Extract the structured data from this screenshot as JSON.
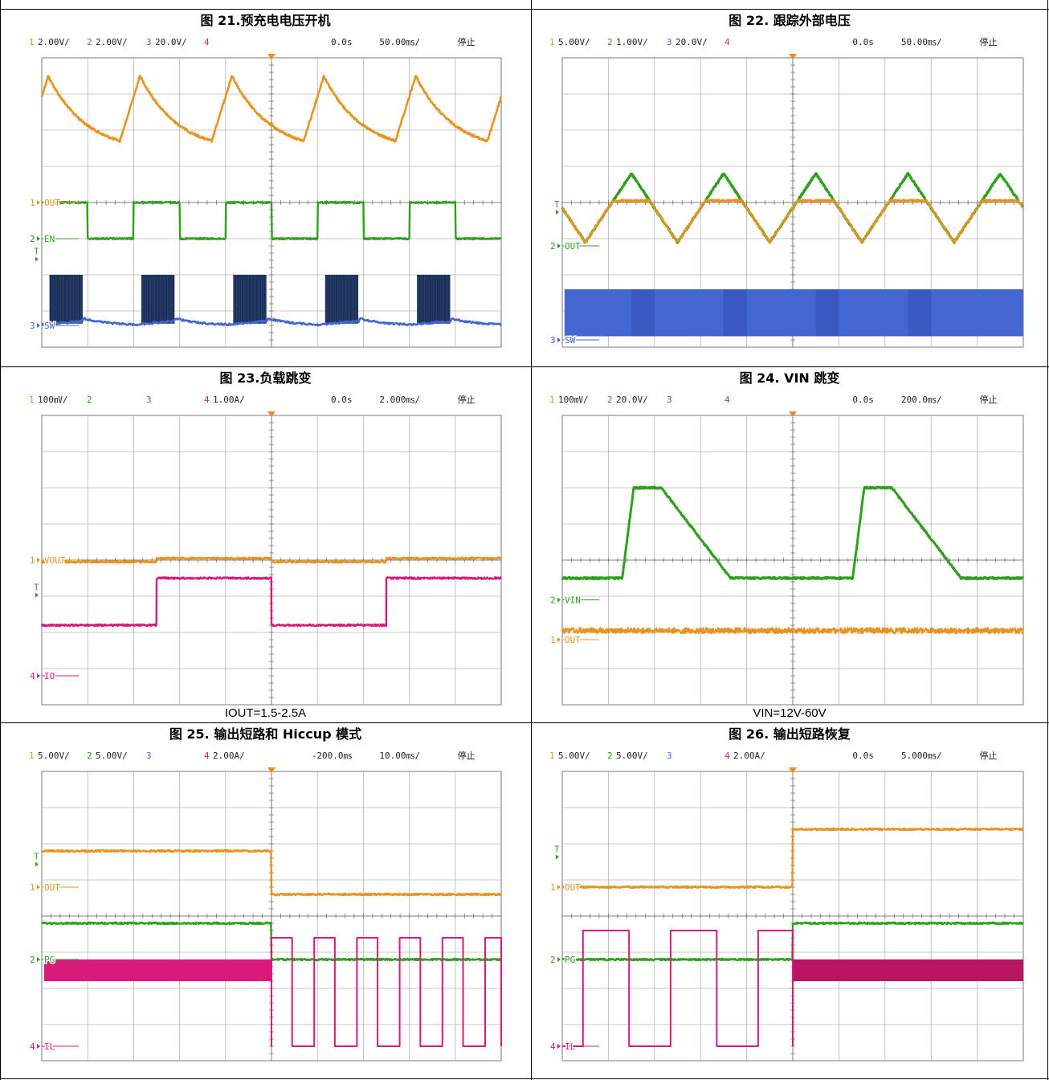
{
  "figures": [
    {
      "title": "图 21.预充电电压开机",
      "caption": "",
      "status": {
        "ch": [
          {
            "n": "1",
            "scale": "2.00V/"
          },
          {
            "n": "2",
            "scale": "2.00V/"
          },
          {
            "n": "3",
            "scale": "20.0V/"
          },
          {
            "n": "4",
            "scale": ""
          }
        ],
        "delay": "0.0s",
        "timebase": "50.00㎳/",
        "state": "停止"
      },
      "labels": [
        {
          "ch": "1",
          "text": "OUT",
          "level": 4
        },
        {
          "ch": "2",
          "text": "EN",
          "level": 5
        },
        {
          "ch": "3",
          "text": "SW",
          "level": 7.4
        }
      ],
      "trigger_level": 5.5
    },
    {
      "title": "图 22. 跟踪外部电压",
      "caption": "",
      "status": {
        "ch": [
          {
            "n": "1",
            "scale": "5.00V/"
          },
          {
            "n": "2",
            "scale": "1.00V/"
          },
          {
            "n": "3",
            "scale": "20.0V/"
          },
          {
            "n": "4",
            "scale": ""
          }
        ],
        "delay": "0.0s",
        "timebase": "50.00㎳/",
        "state": "停止"
      },
      "labels": [
        {
          "ch": "2",
          "text": "OUT",
          "level": 5.2
        },
        {
          "ch": "3",
          "text": "SW",
          "level": 7.8
        }
      ],
      "trigger_level": 4.2
    },
    {
      "title": "图 23.负载跳变",
      "caption": "IOUT=1.5-2.5A",
      "status": {
        "ch": [
          {
            "n": "1",
            "scale": "100㎷/"
          },
          {
            "n": "2",
            "scale": ""
          },
          {
            "n": "3",
            "scale": ""
          },
          {
            "n": "4",
            "scale": "1.00A/"
          }
        ],
        "delay": "0.0s",
        "timebase": "2.000㎳/",
        "state": "停止"
      },
      "labels": [
        {
          "ch": "1",
          "text": "VOUT",
          "level": 4
        },
        {
          "ch": "4",
          "text": "IO",
          "level": 7.2
        }
      ],
      "trigger_level": 4.9
    },
    {
      "title": "图 24. VIN 跳变",
      "caption": "VIN=12V-60V",
      "status": {
        "ch": [
          {
            "n": "1",
            "scale": "100㎷/"
          },
          {
            "n": "2",
            "scale": "20.0V/"
          },
          {
            "n": "3",
            "scale": ""
          },
          {
            "n": "4",
            "scale": ""
          }
        ],
        "delay": "0.0s",
        "timebase": "200.0㎳/",
        "state": "停止"
      },
      "labels": [
        {
          "ch": "2",
          "text": "VIN",
          "level": 5.1
        },
        {
          "ch": "1",
          "text": "OUT",
          "level": 6.2
        }
      ],
      "trigger_level": null
    },
    {
      "title": "图 25. 输出短路和 Hiccup 模式",
      "caption": "",
      "status": {
        "ch": [
          {
            "n": "1",
            "scale": "5.00V/"
          },
          {
            "n": "2",
            "scale": "5.00V/"
          },
          {
            "n": "3",
            "scale": ""
          },
          {
            "n": "4",
            "scale": "2.00A/"
          }
        ],
        "delay": "-200.0㎳",
        "timebase": "10.00㎳/",
        "state": "停止"
      },
      "labels": [
        {
          "ch": "1",
          "text": "OUT",
          "level": 3.2
        },
        {
          "ch": "2",
          "text": "PG",
          "level": 5.2
        },
        {
          "ch": "4",
          "text": "IL",
          "level": 7.6
        }
      ],
      "trigger_level": 2.5
    },
    {
      "title": "图 26. 输出短路恢复",
      "caption": "",
      "status": {
        "ch": [
          {
            "n": "1",
            "scale": "5.00V/"
          },
          {
            "n": "2",
            "scale": "5.00V/"
          },
          {
            "n": "3",
            "scale": ""
          },
          {
            "n": "4",
            "scale": "2.00A/"
          }
        ],
        "delay": "0.0s",
        "timebase": "5.000㎳/",
        "state": "停止"
      },
      "labels": [
        {
          "ch": "1",
          "text": "OUT",
          "level": 3.2
        },
        {
          "ch": "2",
          "text": "PG",
          "level": 5.2
        },
        {
          "ch": "4",
          "text": "IL",
          "level": 7.6
        }
      ],
      "trigger_level": 2.3
    }
  ],
  "colors": {
    "ch1": "#e8931e",
    "ch2": "#2ea01e",
    "ch3": "#4466d0",
    "ch3_burst": "#1a2e5a",
    "ch4": "#d81b7a",
    "grid": "#b4b4b4",
    "frame": "#7a7a7a"
  },
  "chart_data": [
    {
      "type": "line",
      "divisions_x": 10,
      "divisions_y": 8,
      "series": [
        {
          "channel": "1",
          "kind": "sawtooth",
          "period_div": 2,
          "high_level": 0.5,
          "low_level": 2.3,
          "phase_div": 0.3
        },
        {
          "channel": "2",
          "kind": "square",
          "period_div": 2,
          "high_level": 4.0,
          "low_level": 5.0,
          "high_first_div": 1.0
        },
        {
          "channel": "3",
          "kind": "burst",
          "period_div": 2,
          "burst_div": 0.9,
          "top_level": 6.0,
          "base_level": 7.4
        }
      ]
    },
    {
      "type": "line",
      "divisions_x": 10,
      "divisions_y": 8,
      "series": [
        {
          "channel": "2",
          "kind": "triangle",
          "period_div": 2,
          "high_level": 3.2,
          "low_level": 5.1
        },
        {
          "channel": "1",
          "kind": "clipped_triangle",
          "period_div": 2,
          "clip_level": 3.95,
          "low_level": 5.1
        },
        {
          "channel": "3",
          "kind": "band",
          "top_level": 6.4,
          "bottom_level": 7.7
        }
      ]
    },
    {
      "type": "line",
      "divisions_x": 10,
      "divisions_y": 8,
      "series": [
        {
          "channel": "1",
          "kind": "step",
          "segments": [
            [
              0.0,
              4.05
            ],
            [
              2.5,
              3.95
            ],
            [
              5.0,
              4.05
            ],
            [
              7.5,
              3.95
            ],
            [
              10.0,
              3.95
            ]
          ]
        },
        {
          "channel": "4",
          "kind": "step",
          "segments": [
            [
              0.0,
              5.8
            ],
            [
              2.5,
              4.5
            ],
            [
              5.0,
              5.8
            ],
            [
              7.5,
              4.5
            ],
            [
              10.0,
              4.5
            ]
          ]
        }
      ]
    },
    {
      "type": "line",
      "divisions_x": 10,
      "divisions_y": 8,
      "series": [
        {
          "channel": "2",
          "kind": "pulse",
          "events": [
            {
              "start": 1.3,
              "rise": 0.25,
              "flat": 0.6,
              "fall": 1.5
            },
            {
              "start": 6.3,
              "rise": 0.25,
              "flat": 0.6,
              "fall": 1.5
            }
          ],
          "low_level": 4.5,
          "high_level": 2.0
        },
        {
          "channel": "1",
          "kind": "noise",
          "level": 5.95,
          "noise": 0.15
        }
      ]
    },
    {
      "type": "line",
      "divisions_x": 10,
      "divisions_y": 8,
      "series": [
        {
          "channel": "1",
          "kind": "step",
          "segments": [
            [
              0.0,
              2.2
            ],
            [
              5.0,
              3.4
            ],
            [
              10.0,
              3.4
            ]
          ]
        },
        {
          "channel": "2",
          "kind": "step",
          "segments": [
            [
              0.0,
              4.2
            ],
            [
              5.0,
              5.2
            ],
            [
              10.0,
              5.2
            ]
          ]
        },
        {
          "channel": "4",
          "kind": "hiccup",
          "band_top": 5.2,
          "band_bottom": 5.8,
          "switch_at": 5.0,
          "period_div": 0.93,
          "on_div": 0.45,
          "high_level": 4.6,
          "low_level": 7.6
        }
      ]
    },
    {
      "type": "line",
      "divisions_x": 10,
      "divisions_y": 8,
      "series": [
        {
          "channel": "1",
          "kind": "step",
          "segments": [
            [
              0.0,
              3.2
            ],
            [
              5.0,
              1.6
            ],
            [
              10.0,
              1.6
            ]
          ]
        },
        {
          "channel": "2",
          "kind": "step",
          "segments": [
            [
              0.0,
              5.2
            ],
            [
              5.0,
              4.2
            ],
            [
              10.0,
              4.2
            ]
          ]
        },
        {
          "channel": "4",
          "kind": "hiccup_rev",
          "band_top": 5.2,
          "band_bottom": 5.8,
          "switch_at": 5.0,
          "start_div": 0.45,
          "period_div": 1.9,
          "on_div": 1.0,
          "high_level": 4.4,
          "low_level": 7.6
        }
      ]
    }
  ]
}
